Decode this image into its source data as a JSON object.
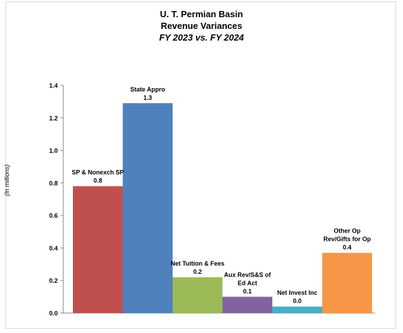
{
  "title": {
    "line1": "U. T. Permian Basin",
    "line2": "Revenue Variances",
    "line3": "FY 2023 vs. FY 2024"
  },
  "chart_data": {
    "type": "bar",
    "ylabel": "(In  millions)",
    "ylim": [
      0,
      1.4
    ],
    "yticks": [
      0.0,
      0.2,
      0.4,
      0.6,
      0.8,
      1.0,
      1.2,
      1.4
    ],
    "ytick_labels": [
      "0.0",
      "0.2",
      "0.4",
      "0.6",
      "0.8",
      "1.0",
      "1.2",
      "1.4"
    ],
    "grid": false,
    "legend": "none",
    "bars": [
      {
        "label_lines": [
          "SP & Nonexch SP"
        ],
        "value": 0.78,
        "value_label": "0.8",
        "color": "#c0504d"
      },
      {
        "label_lines": [
          "State Appro"
        ],
        "value": 1.29,
        "value_label": "1.3",
        "color": "#4f81bd"
      },
      {
        "label_lines": [
          "Net Tuition & Fees"
        ],
        "value": 0.22,
        "value_label": "0.2",
        "color": "#9bbb59"
      },
      {
        "label_lines": [
          "Aux Rev/S&S of",
          "Ed Act"
        ],
        "value": 0.1,
        "value_label": "0.1",
        "color": "#8064a2"
      },
      {
        "label_lines": [
          "Net Invest Inc"
        ],
        "value": 0.04,
        "value_label": "0.0",
        "color": "#4bacc6"
      },
      {
        "label_lines": [
          "Other Op",
          "Rev/Gifts for Op"
        ],
        "value": 0.37,
        "value_label": "0.4",
        "color": "#f79646"
      }
    ]
  }
}
